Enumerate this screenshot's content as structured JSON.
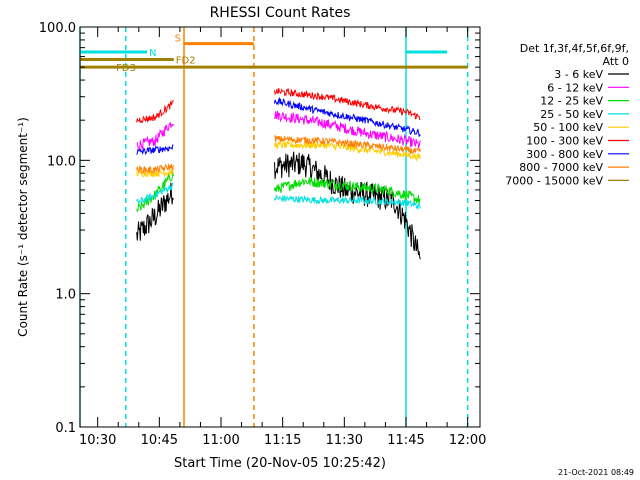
{
  "chart_data": {
    "type": "line",
    "title": "RHESSI Count Rates",
    "xlabel": "Start Time (20-Nov-05 10:25:42)",
    "ylabel": "Count Rate (s⁻¹ detector segment⁻¹)",
    "yscale": "log",
    "xlim": [
      "10:25:42",
      "12:03:00"
    ],
    "ylim": [
      0.1,
      100.0
    ],
    "x_ticks": [
      "10:30",
      "10:45",
      "11:00",
      "11:15",
      "11:30",
      "11:45",
      "12:00"
    ],
    "y_ticks": [
      "0.1",
      "1.0",
      "10.0",
      "100.0"
    ],
    "legend_header": [
      "Det 1f,3f,4f,5f,6f,9f,",
      "Att 0"
    ],
    "legend_placement": "right",
    "footer_date": "21-Oct-2021 08:49",
    "segments": [
      [
        "10:39:30",
        "10:48:30"
      ],
      [
        "11:13:00",
        "11:48:30"
      ]
    ],
    "series": [
      {
        "name": "3 - 6 keV",
        "color": "#000000",
        "points": [
          [
            "10:39:30",
            2.7
          ],
          [
            "10:44:00",
            3.8
          ],
          [
            "10:48:30",
            6.0
          ],
          [
            "11:13:00",
            9.0
          ],
          [
            "11:20:00",
            9.5
          ],
          [
            "11:30:00",
            6.0
          ],
          [
            "11:42:00",
            5.0
          ],
          [
            "11:45:00",
            3.5
          ],
          [
            "11:48:30",
            1.8
          ]
        ]
      },
      {
        "name": "6 - 12 keV",
        "color": "#ff00ff",
        "points": [
          [
            "10:39:30",
            13.0
          ],
          [
            "10:44:00",
            14.0
          ],
          [
            "10:48:30",
            20.0
          ],
          [
            "11:13:00",
            22.0
          ],
          [
            "11:25:00",
            19.0
          ],
          [
            "11:35:00",
            16.0
          ],
          [
            "11:45:00",
            14.0
          ],
          [
            "11:48:30",
            13.0
          ]
        ]
      },
      {
        "name": "12 - 25 keV",
        "color": "#00dd00",
        "points": [
          [
            "10:39:30",
            4.2
          ],
          [
            "10:44:00",
            5.5
          ],
          [
            "10:48:30",
            8.0
          ],
          [
            "11:13:00",
            6.0
          ],
          [
            "11:20:00",
            7.0
          ],
          [
            "11:30:00",
            6.5
          ],
          [
            "11:40:00",
            6.0
          ],
          [
            "11:45:00",
            5.5
          ],
          [
            "11:48:30",
            5.0
          ]
        ]
      },
      {
        "name": "25 - 50 keV",
        "color": "#00e0e0",
        "points": [
          [
            "10:39:30",
            4.8
          ],
          [
            "10:44:00",
            5.5
          ],
          [
            "10:48:30",
            6.5
          ],
          [
            "11:13:00",
            5.2
          ],
          [
            "11:25:00",
            5.0
          ],
          [
            "11:35:00",
            5.0
          ],
          [
            "11:45:00",
            4.8
          ],
          [
            "11:48:30",
            4.5
          ]
        ]
      },
      {
        "name": "50 - 100 keV",
        "color": "#ffcc00",
        "points": [
          [
            "10:39:30",
            8.0
          ],
          [
            "10:44:00",
            8.0
          ],
          [
            "10:48:30",
            8.2
          ],
          [
            "11:13:00",
            13.0
          ],
          [
            "11:25:00",
            13.0
          ],
          [
            "11:35:00",
            12.0
          ],
          [
            "11:45:00",
            11.0
          ],
          [
            "11:48:30",
            10.5
          ]
        ]
      },
      {
        "name": "100 - 300 keV",
        "color": "#ff0000",
        "points": [
          [
            "10:39:30",
            20.0
          ],
          [
            "10:44:00",
            21.0
          ],
          [
            "10:48:30",
            27.0
          ],
          [
            "11:13:00",
            33.0
          ],
          [
            "11:25:00",
            30.0
          ],
          [
            "11:35:00",
            26.0
          ],
          [
            "11:45:00",
            23.0
          ],
          [
            "11:48:30",
            21.0
          ]
        ]
      },
      {
        "name": "300 - 800 keV",
        "color": "#0000ff",
        "points": [
          [
            "10:39:30",
            11.5
          ],
          [
            "10:44:00",
            12.0
          ],
          [
            "10:48:30",
            12.5
          ],
          [
            "11:13:00",
            28.0
          ],
          [
            "11:25:00",
            23.0
          ],
          [
            "11:35:00",
            20.0
          ],
          [
            "11:45:00",
            17.0
          ],
          [
            "11:48:30",
            16.0
          ]
        ]
      },
      {
        "name": "800 - 7000 keV",
        "color": "#ff8000",
        "points": [
          [
            "10:39:30",
            8.5
          ],
          [
            "10:44:00",
            8.5
          ],
          [
            "10:48:30",
            9.0
          ],
          [
            "11:13:00",
            14.5
          ],
          [
            "11:25:00",
            14.0
          ],
          [
            "11:35:00",
            13.0
          ],
          [
            "11:45:00",
            12.0
          ],
          [
            "11:48:30",
            11.5
          ]
        ]
      },
      {
        "name": "7000 - 15000 keV",
        "color": "#a08000",
        "points": []
      }
    ],
    "state_bars": [
      {
        "label": "N",
        "color": "#00e0e0",
        "value": 65.0,
        "ranges": [
          [
            "10:25:42",
            "10:42:00"
          ],
          [
            "11:45:00",
            "11:55:00"
          ]
        ]
      },
      {
        "label": "S",
        "color": "#ff8000",
        "value": 75.0,
        "ranges": [
          [
            "10:51:00",
            "11:08:00"
          ]
        ]
      },
      {
        "label": "FD2",
        "color": "#a08000",
        "value": 57.0,
        "ranges": [
          [
            "10:25:42",
            "10:48:30"
          ]
        ]
      },
      {
        "label": "FD3",
        "color": "#a08000",
        "value": 50.0,
        "ranges": [
          [
            "10:25:42",
            "12:00:00"
          ]
        ]
      }
    ],
    "vertical_markers": [
      {
        "time": "10:25:42",
        "color": "#00e0e0",
        "style": "solid"
      },
      {
        "time": "10:36:50",
        "color": "#00e0e0",
        "style": "dashed"
      },
      {
        "time": "10:51:00",
        "color": "#ff8000",
        "style": "solid"
      },
      {
        "time": "11:08:00",
        "color": "#ff8000",
        "style": "dashed"
      },
      {
        "time": "11:45:00",
        "color": "#00e0e0",
        "style": "solid"
      },
      {
        "time": "12:00:00",
        "color": "#00e0e0",
        "style": "dashed"
      }
    ]
  }
}
